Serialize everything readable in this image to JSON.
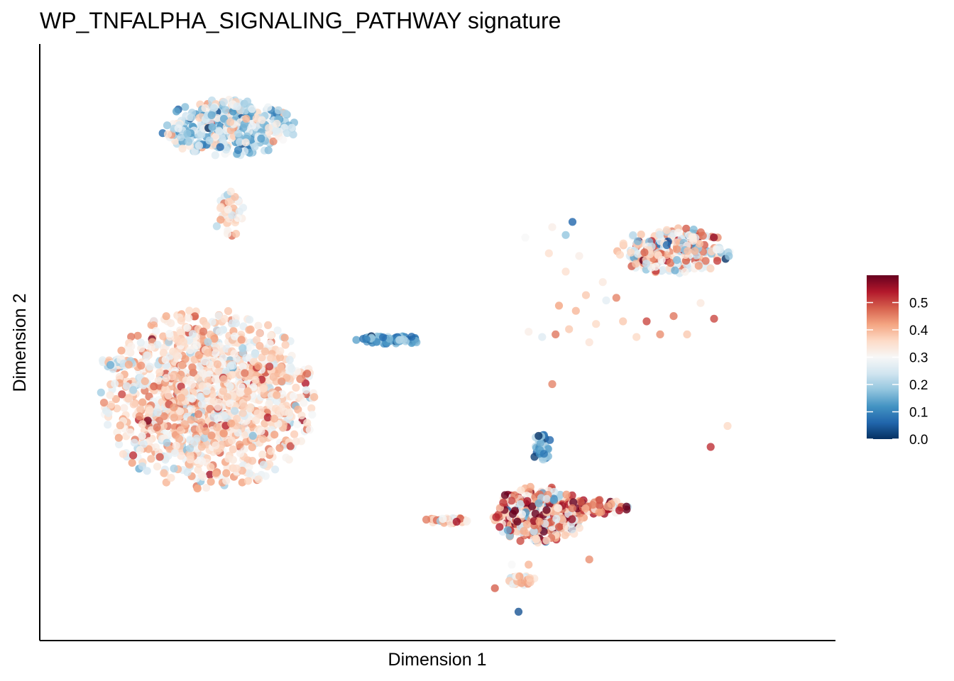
{
  "chart_data": {
    "type": "scatter",
    "title": "WP_TNFALPHA_SIGNALING_PATHWAY signature",
    "xlabel": "Dimension 1",
    "ylabel": "Dimension 2",
    "x_ticks": "none",
    "y_ticks": "none",
    "grid": false,
    "color_scale": {
      "name": "RdBu (reversed)",
      "min": 0.0,
      "max": 0.6,
      "ticks": [
        0.0,
        0.1,
        0.2,
        0.3,
        0.4,
        0.5
      ],
      "tick_labels": [
        "0.0",
        "0.1",
        "0.2",
        "0.3",
        "0.4",
        "0.5"
      ],
      "stops": [
        "#053061",
        "#2166ac",
        "#4393c3",
        "#92c5de",
        "#d1e5f0",
        "#f7f7f7",
        "#fddbc7",
        "#f4a582",
        "#d6604d",
        "#b2182b",
        "#67001f"
      ],
      "legend_position": "right"
    },
    "clusters": [
      {
        "center": [
          2.3,
          8.3
        ],
        "spread": [
          1.0,
          0.55
        ],
        "n": 420,
        "score_mean": 0.24,
        "score_sd": 0.09
      },
      {
        "center": [
          2.3,
          6.65
        ],
        "spread": [
          0.25,
          0.45
        ],
        "n": 45,
        "score_mean": 0.33,
        "score_sd": 0.07
      },
      {
        "center": [
          2.0,
          3.1
        ],
        "spread": [
          1.6,
          1.75
        ],
        "n": 1350,
        "score_mean": 0.35,
        "score_sd": 0.07
      },
      {
        "center": [
          0.65,
          3.8
        ],
        "spread": [
          0.25,
          0.12
        ],
        "n": 30,
        "score_mean": 0.26,
        "score_sd": 0.06
      },
      {
        "center": [
          4.7,
          4.25
        ],
        "spread": [
          0.55,
          0.08
        ],
        "n": 60,
        "score_mean": 0.14,
        "score_sd": 0.07
      },
      {
        "center": [
          8.9,
          5.95
        ],
        "spread": [
          0.85,
          0.45
        ],
        "n": 280,
        "score_mean": 0.33,
        "score_sd": 0.12
      },
      {
        "center": [
          6.95,
          2.2
        ],
        "spread": [
          0.16,
          0.3
        ],
        "n": 45,
        "score_mean": 0.11,
        "score_sd": 0.08
      },
      {
        "center": [
          6.9,
          0.9
        ],
        "spread": [
          0.7,
          0.55
        ],
        "n": 420,
        "score_mean": 0.4,
        "score_sd": 0.13
      },
      {
        "center": [
          7.7,
          1.05
        ],
        "spread": [
          0.55,
          0.14
        ],
        "n": 90,
        "score_mean": 0.45,
        "score_sd": 0.1
      },
      {
        "center": [
          5.5,
          0.8
        ],
        "spread": [
          0.35,
          0.08
        ],
        "n": 30,
        "score_mean": 0.38,
        "score_sd": 0.08
      },
      {
        "center": [
          6.6,
          -0.35
        ],
        "spread": [
          0.25,
          0.12
        ],
        "n": 35,
        "score_mean": 0.34,
        "score_sd": 0.06
      }
    ],
    "scattered_points": [
      {
        "x": 6.7,
        "y": 6.2,
        "score": 0.3
      },
      {
        "x": 7.1,
        "y": 6.4,
        "score": 0.32
      },
      {
        "x": 7.3,
        "y": 6.25,
        "score": 0.18
      },
      {
        "x": 7.4,
        "y": 6.5,
        "score": 0.06
      },
      {
        "x": 7.05,
        "y": 5.9,
        "score": 0.35
      },
      {
        "x": 7.5,
        "y": 5.85,
        "score": 0.32
      },
      {
        "x": 7.3,
        "y": 5.55,
        "score": 0.35
      },
      {
        "x": 7.6,
        "y": 5.1,
        "score": 0.38
      },
      {
        "x": 7.85,
        "y": 5.35,
        "score": 0.33
      },
      {
        "x": 7.9,
        "y": 5.0,
        "score": 0.27
      },
      {
        "x": 8.05,
        "y": 5.05,
        "score": 0.45
      },
      {
        "x": 7.2,
        "y": 4.9,
        "score": 0.42
      },
      {
        "x": 6.75,
        "y": 4.4,
        "score": 0.32
      },
      {
        "x": 6.95,
        "y": 4.3,
        "score": 0.26
      },
      {
        "x": 7.15,
        "y": 4.35,
        "score": 0.46
      },
      {
        "x": 7.35,
        "y": 4.45,
        "score": 0.38
      },
      {
        "x": 7.65,
        "y": 4.2,
        "score": 0.34
      },
      {
        "x": 7.45,
        "y": 4.8,
        "score": 0.4
      },
      {
        "x": 7.75,
        "y": 4.55,
        "score": 0.36
      },
      {
        "x": 8.15,
        "y": 4.6,
        "score": 0.38
      },
      {
        "x": 8.35,
        "y": 4.3,
        "score": 0.36
      },
      {
        "x": 8.5,
        "y": 4.6,
        "score": 0.5
      },
      {
        "x": 8.7,
        "y": 4.35,
        "score": 0.44
      },
      {
        "x": 8.9,
        "y": 4.7,
        "score": 0.46
      },
      {
        "x": 9.1,
        "y": 4.35,
        "score": 0.38
      },
      {
        "x": 9.3,
        "y": 4.95,
        "score": 0.33
      },
      {
        "x": 9.5,
        "y": 4.65,
        "score": 0.5
      },
      {
        "x": 7.1,
        "y": 3.4,
        "score": 0.45
      },
      {
        "x": 9.7,
        "y": 2.6,
        "score": 0.36
      },
      {
        "x": 9.45,
        "y": 2.2,
        "score": 0.52
      },
      {
        "x": 7.65,
        "y": 0.05,
        "score": 0.44
      },
      {
        "x": 6.5,
        "y": -0.05,
        "score": 0.3
      },
      {
        "x": 6.75,
        "y": -0.05,
        "score": 0.4
      },
      {
        "x": 6.25,
        "y": -0.5,
        "score": 0.48
      },
      {
        "x": 6.6,
        "y": -0.95,
        "score": 0.04
      }
    ],
    "xlim": [
      -0.5,
      11.3
    ],
    "ylim": [
      -1.5,
      9.9
    ]
  }
}
